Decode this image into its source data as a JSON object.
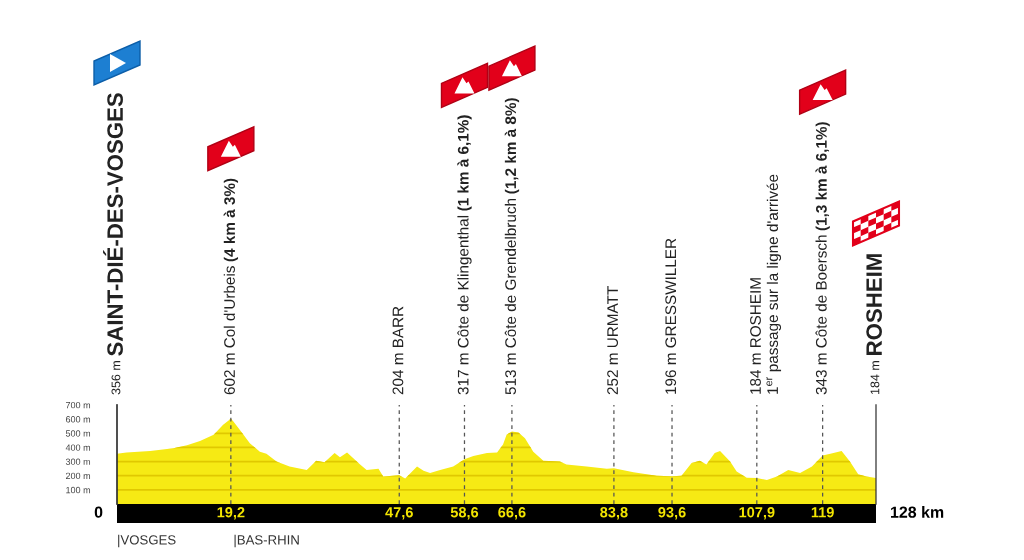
{
  "chart_data": {
    "type": "area",
    "x": [
      0,
      1.6,
      5.6,
      9.5,
      11.8,
      14.0,
      16.3,
      17.9,
      19.2,
      19.6,
      20.7,
      22.4,
      24.1,
      25.2,
      26.9,
      29.1,
      32.0,
      33.6,
      35.0,
      36.7,
      37.6,
      38.8,
      41.0,
      42.1,
      44.1,
      44.9,
      47.6,
      48.6,
      50.6,
      51.7,
      52.8,
      54.5,
      56.7,
      58.6,
      60.1,
      62.4,
      64.1,
      65.1,
      65.7,
      66.6,
      67.7,
      68.8,
      70.2,
      71.9,
      74.7,
      75.8,
      79.2,
      82.6,
      83.8,
      87.1,
      91.0,
      93.6,
      95.2,
      96.9,
      98.3,
      99.4,
      100.8,
      101.7,
      103.4,
      104.5,
      106.2,
      107.9,
      109.6,
      111.3,
      113.2,
      115.2,
      117.2,
      119,
      120.3,
      122.2,
      123.6,
      125.0,
      126.4,
      128
    ],
    "series": [
      {
        "color": "#f6ea14",
        "values": [
          356,
          365,
          375,
          395,
          415,
          445,
          490,
          560,
          602,
          585,
          525,
          430,
          370,
          355,
          300,
          265,
          240,
          305,
          295,
          360,
          330,
          365,
          280,
          240,
          250,
          195,
          204,
          180,
          265,
          235,
          220,
          240,
          265,
          317,
          340,
          360,
          365,
          420,
          490,
          513,
          505,
          465,
          370,
          305,
          300,
          280,
          265,
          250,
          252,
          225,
          200,
          196,
          200,
          290,
          305,
          280,
          360,
          375,
          300,
          230,
          185,
          184,
          170,
          195,
          240,
          220,
          265,
          343,
          355,
          375,
          300,
          210,
          195,
          184
        ]
      }
    ],
    "xlim": [
      0,
      128
    ],
    "ylim": [
      0,
      700
    ],
    "xticks": [
      {
        "value": 19.2,
        "label": "19,2"
      },
      {
        "value": 47.6,
        "label": "47,6"
      },
      {
        "value": 58.6,
        "label": "58,6"
      },
      {
        "value": 66.6,
        "label": "66,6"
      },
      {
        "value": 83.8,
        "label": "83,8"
      },
      {
        "value": 93.6,
        "label": "93,6"
      },
      {
        "value": 107.9,
        "label": "107,9"
      },
      {
        "value": 119,
        "label": "119"
      }
    ],
    "yticks": [
      {
        "value": 100,
        "label": "100 m"
      },
      {
        "value": 200,
        "label": "200 m"
      },
      {
        "value": 300,
        "label": "300 m"
      },
      {
        "value": 400,
        "label": "400 m"
      },
      {
        "value": 500,
        "label": "500 m"
      },
      {
        "value": 600,
        "label": "600 m"
      },
      {
        "value": 700,
        "label": "700 m"
      }
    ],
    "grid": "y",
    "ref_lines": [
      {
        "axis": "x",
        "value": 0,
        "color": "#333333",
        "line_style": "solid",
        "label": "356 m SAINT-DIÉ-DES-VOSGES"
      },
      {
        "axis": "x",
        "value": 19.2,
        "color": "#555555",
        "line_style": "dashed",
        "label": "602 m Col d'Urbeis (4 km à 3%)"
      },
      {
        "axis": "x",
        "value": 47.6,
        "color": "#555555",
        "line_style": "dashed",
        "label": "204 m BARR"
      },
      {
        "axis": "x",
        "value": 58.6,
        "color": "#555555",
        "line_style": "dashed",
        "label": "317 m Côte de Klingenthal (1 km à 6,1%)"
      },
      {
        "axis": "x",
        "value": 66.6,
        "color": "#555555",
        "line_style": "dashed",
        "label": "513 m Côte de Grendelbruch (1,2 km à 8%)"
      },
      {
        "axis": "x",
        "value": 83.8,
        "color": "#555555",
        "line_style": "dashed",
        "label": "252 m URMATT"
      },
      {
        "axis": "x",
        "value": 93.6,
        "color": "#555555",
        "line_style": "dashed",
        "label": "196 m GRESSWILLER"
      },
      {
        "axis": "x",
        "value": 107.9,
        "color": "#555555",
        "line_style": "dashed",
        "label": "184 m ROSHEIM\n1$^{er}$ passage sur la ligne d'arrivée"
      },
      {
        "axis": "x",
        "value": 119,
        "color": "#555555",
        "line_style": "dashed",
        "label": "343 m Côte de Boersch (1,3 km à 6,1%)"
      },
      {
        "axis": "x",
        "value": 128,
        "color": "#333333",
        "line_style": "solid",
        "label": "184 m ROSHEIM"
      }
    ],
    "annotations": [
      {
        "text": "0",
        "x": 0,
        "y": 0
      },
      {
        "text": "128 km",
        "x": 128,
        "y": 0
      },
      "|VOSGES",
      "|BAS-RHIN"
    ]
  }
}
